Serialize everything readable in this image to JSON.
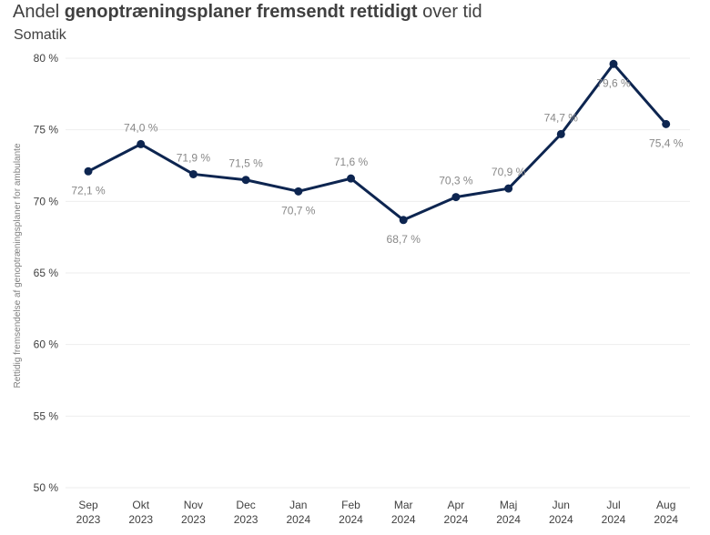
{
  "header": {
    "title_pre": "Andel ",
    "title_bold": "genoptræningsplaner fremsendt rettidigt",
    "title_post": " over tid",
    "subtitle": "Somatik"
  },
  "chart_data": {
    "type": "line",
    "categories": [
      [
        "Sep",
        "2023"
      ],
      [
        "Okt",
        "2023"
      ],
      [
        "Nov",
        "2023"
      ],
      [
        "Dec",
        "2023"
      ],
      [
        "Jan",
        "2024"
      ],
      [
        "Feb",
        "2024"
      ],
      [
        "Mar",
        "2024"
      ],
      [
        "Apr",
        "2024"
      ],
      [
        "Maj",
        "2024"
      ],
      [
        "Jun",
        "2024"
      ],
      [
        "Jul",
        "2024"
      ],
      [
        "Aug",
        "2024"
      ]
    ],
    "values": [
      72.1,
      74.0,
      71.9,
      71.5,
      70.7,
      71.6,
      68.7,
      70.3,
      70.9,
      74.7,
      79.6,
      75.4
    ],
    "value_labels": [
      "72,1 %",
      "74,0 %",
      "71,9 %",
      "71,5 %",
      "70,7 %",
      "71,6 %",
      "68,7 %",
      "70,3 %",
      "70,9 %",
      "74,7 %",
      "79,6 %",
      "75,4 %"
    ],
    "label_positions": [
      "below",
      "above",
      "above",
      "above",
      "below",
      "above",
      "below",
      "above",
      "above",
      "above",
      "below",
      "below"
    ],
    "ylabel": "Rettidig fremsendelse af genoptræningsplaner for ambulante",
    "ylim": [
      50,
      80
    ],
    "yticks": [
      50,
      55,
      60,
      65,
      70,
      75,
      80
    ],
    "ytick_labels": [
      "50 %",
      "55 %",
      "60 %",
      "65 %",
      "70 %",
      "75 %",
      "80 %"
    ],
    "grid": true,
    "colors": {
      "line": "#0d2550",
      "grid": "#eeeeee"
    }
  }
}
